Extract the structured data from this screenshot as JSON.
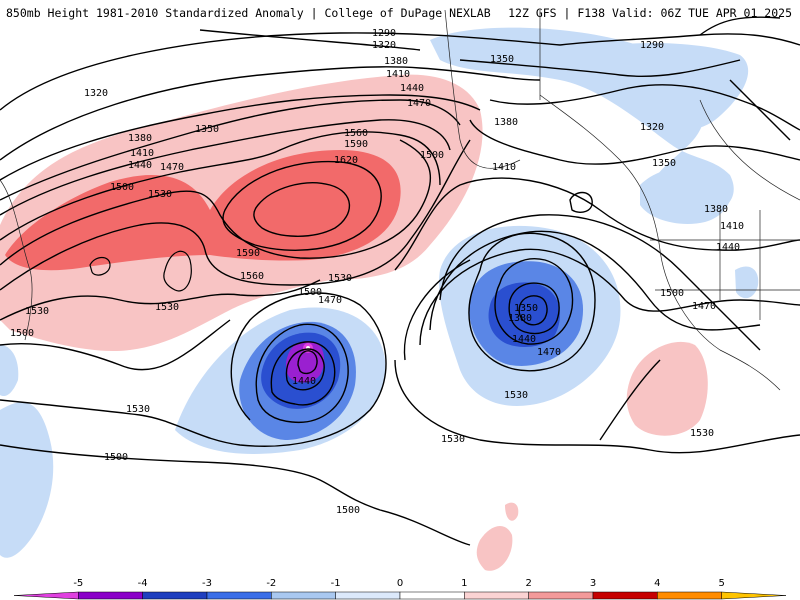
{
  "header": {
    "left_title": "850mb Height 1981-2010 Standardized Anomaly | College of DuPage NEXLAB",
    "right_title": "12Z GFS | F138 Valid: 06Z TUE APR 01 2025"
  },
  "contours": {
    "c1290": "1290",
    "c1320": "1320",
    "c1350": "1350",
    "c1380": "1380",
    "c1410": "1410",
    "c1440": "1440",
    "c1470": "1470",
    "c1500": "1500",
    "c1530": "1530",
    "c1560": "1560",
    "c1590": "1590",
    "c1620": "1620"
  },
  "colorbar": {
    "ticks": [
      "-5",
      "-4",
      "-3",
      "-2",
      "-1",
      "0",
      "1",
      "2",
      "3",
      "4",
      "5"
    ],
    "colors": [
      "#e040e0",
      "#8a00c8",
      "#1f3fbf",
      "#3a6ee8",
      "#a9c8f0",
      "#dce9fb",
      "#ffffff",
      "#fbd3d3",
      "#f39a9a",
      "#c60000",
      "#ff8c00",
      "#ffc400"
    ]
  },
  "anomaly_colors": {
    "strong_pos": "#f26a6a",
    "weak_pos": "#f8c4c4",
    "weak_neg": "#c6dcf7",
    "mod_neg": "#5a86e6",
    "strong_neg": "#2a4fd0",
    "extreme_neg": "#9a20d0"
  }
}
